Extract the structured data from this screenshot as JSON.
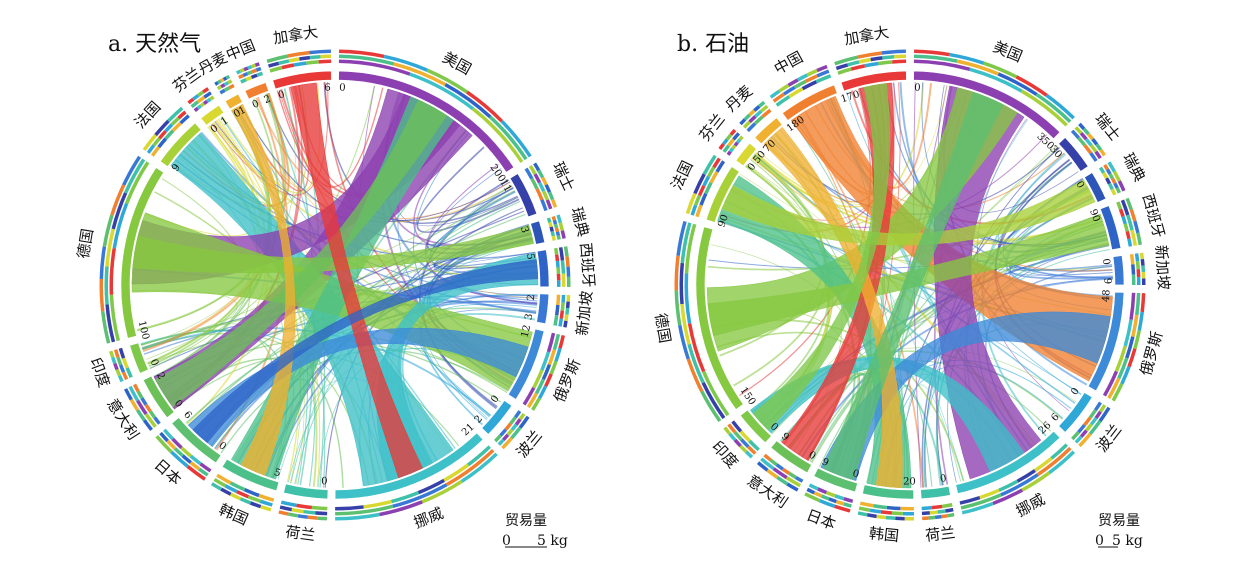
{
  "chart_data": [
    {
      "type": "chord",
      "title": "a. 天然气",
      "legend": {
        "title": "贸易量",
        "scale_min": "0",
        "scale_max": "5 kg"
      },
      "segments": [
        {
          "name": "美国",
          "color": "#8c3fb0",
          "tick_labels": [
            "0",
            "200"
          ]
        },
        {
          "name": "瑞士",
          "color": "#3540a8",
          "tick_labels": [
            "11"
          ]
        },
        {
          "name": "瑞典",
          "color": "#2d55b8",
          "tick_labels": [
            "3"
          ]
        },
        {
          "name": "西班牙",
          "color": "#2e64c8",
          "tick_labels": [
            "5"
          ]
        },
        {
          "name": "新加坡",
          "color": "#3a78d6",
          "tick_labels": [
            "2",
            "3"
          ]
        },
        {
          "name": "俄罗斯",
          "color": "#3c8ad8",
          "tick_labels": [
            "12"
          ]
        },
        {
          "name": "波兰",
          "color": "#2fa8d8",
          "tick_labels": [
            "0",
            "2"
          ]
        },
        {
          "name": "挪威",
          "color": "#3ec0c8",
          "tick_labels": [
            "21"
          ]
        },
        {
          "name": "荷兰",
          "color": "#3fc0a8",
          "tick_labels": [
            "0"
          ]
        },
        {
          "name": "韩国",
          "color": "#4cc08a",
          "tick_labels": [
            "5"
          ]
        },
        {
          "name": "日本",
          "color": "#5cc070",
          "tick_labels": [
            "0",
            "6"
          ]
        },
        {
          "name": "意大利",
          "color": "#6cc058",
          "tick_labels": [
            "0",
            "2"
          ]
        },
        {
          "name": "印度",
          "color": "#7ec84a",
          "tick_labels": [
            "0"
          ]
        },
        {
          "name": "德国",
          "color": "#86c840",
          "tick_labels": [
            "100"
          ]
        },
        {
          "name": "法国",
          "color": "#a8d038",
          "tick_labels": [
            "9"
          ]
        },
        {
          "name": "芬兰",
          "color": "#d8d830",
          "tick_labels": [
            "0",
            "1"
          ]
        },
        {
          "name": "丹麦",
          "color": "#f0b030",
          "tick_labels": [
            "0",
            "1"
          ]
        },
        {
          "name": "中国",
          "color": "#f08030",
          "tick_labels": [
            "0",
            "2"
          ]
        },
        {
          "name": "加拿大",
          "color": "#e83838",
          "tick_labels": [
            "0",
            "6"
          ]
        }
      ]
    },
    {
      "type": "chord",
      "title": "b. 石油",
      "legend": {
        "title": "贸易量",
        "scale_min": "0",
        "scale_max": "5 kg"
      },
      "segments": [
        {
          "name": "美国",
          "color": "#8c3fb0",
          "tick_labels": [
            "0",
            "350"
          ]
        },
        {
          "name": "瑞士",
          "color": "#3540a8",
          "tick_labels": [
            "30"
          ]
        },
        {
          "name": "瑞典",
          "color": "#2d55b8",
          "tick_labels": [
            "0"
          ]
        },
        {
          "name": "西班牙",
          "color": "#2e64c8",
          "tick_labels": [
            "90"
          ]
        },
        {
          "name": "新加坡",
          "color": "#3a78d6",
          "tick_labels": [
            "0",
            "9"
          ]
        },
        {
          "name": "俄罗斯",
          "color": "#3c8ad8",
          "tick_labels": [
            "48"
          ]
        },
        {
          "name": "波兰",
          "color": "#2fa8d8",
          "tick_labels": [
            "0",
            "6"
          ]
        },
        {
          "name": "挪威",
          "color": "#3ec0c8",
          "tick_labels": [
            "26"
          ]
        },
        {
          "name": "荷兰",
          "color": "#3fc0a8",
          "tick_labels": [
            "0"
          ]
        },
        {
          "name": "韩国",
          "color": "#4cc08a",
          "tick_labels": [
            "20"
          ]
        },
        {
          "name": "日本",
          "color": "#5cc070",
          "tick_labels": [
            "0",
            "9"
          ]
        },
        {
          "name": "意大利",
          "color": "#6cc058",
          "tick_labels": [
            "0",
            "9"
          ]
        },
        {
          "name": "印度",
          "color": "#7ec84a",
          "tick_labels": [
            "0"
          ]
        },
        {
          "name": "德国",
          "color": "#86c840",
          "tick_labels": [
            "150"
          ]
        },
        {
          "name": "法国",
          "color": "#a8d038",
          "tick_labels": [
            "90"
          ]
        },
        {
          "name": "芬兰",
          "color": "#d8d830",
          "tick_labels": [
            "0",
            "50"
          ]
        },
        {
          "name": "丹麦",
          "color": "#f0b030",
          "tick_labels": [
            "70"
          ]
        },
        {
          "name": "中国",
          "color": "#f08030",
          "tick_labels": [
            "180"
          ]
        },
        {
          "name": "加拿大",
          "color": "#e83838",
          "tick_labels": [
            "170"
          ]
        }
      ]
    }
  ]
}
